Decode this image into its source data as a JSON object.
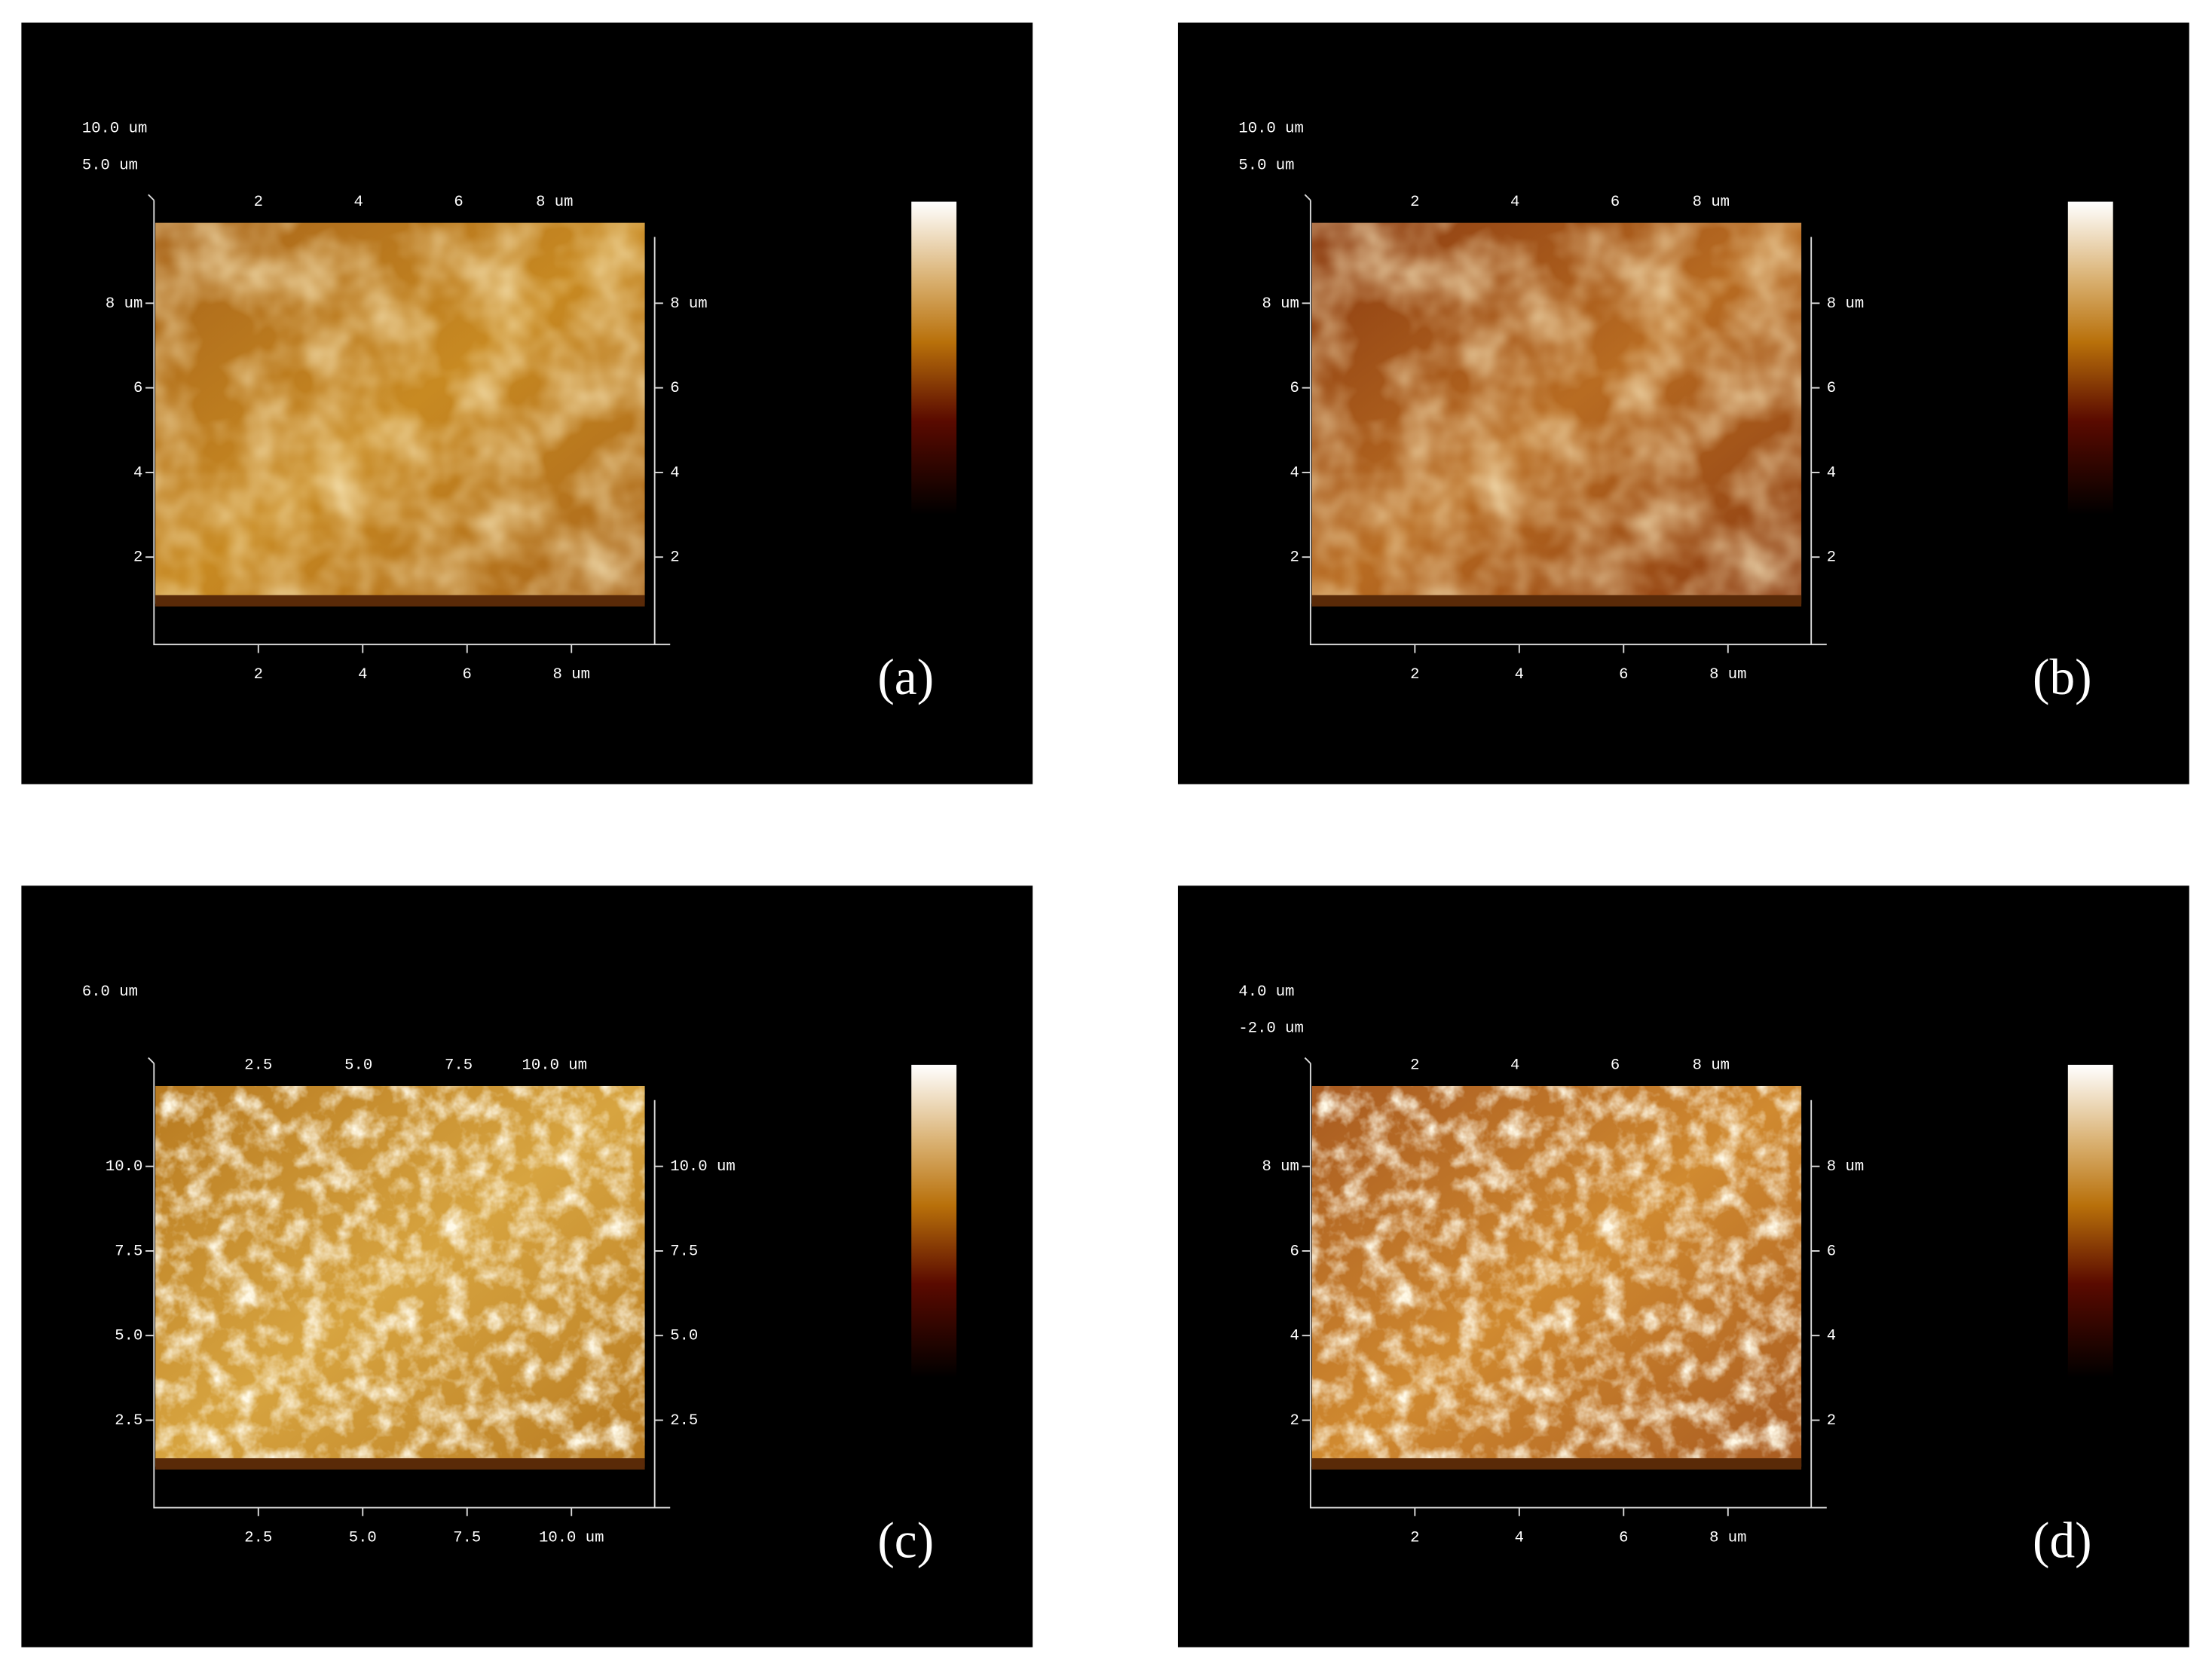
{
  "panels": [
    {
      "label": "(a)",
      "z_labels": [
        "10.0 um",
        "5.0 um"
      ],
      "top_ticks": [
        "2",
        "4",
        "6",
        "8 um"
      ],
      "left_ticks": [
        "8 um",
        "6",
        "4",
        "2"
      ],
      "right_ticks": [
        "8 um",
        "6",
        "4",
        "2"
      ],
      "bottom_ticks": [
        "2",
        "4",
        "6",
        "8 um"
      ]
    },
    {
      "label": "(b)",
      "z_labels": [
        "10.0 um",
        "5.0 um"
      ],
      "top_ticks": [
        "2",
        "4",
        "6",
        "8 um"
      ],
      "left_ticks": [
        "8 um",
        "6",
        "4",
        "2"
      ],
      "right_ticks": [
        "8 um",
        "6",
        "4",
        "2"
      ],
      "bottom_ticks": [
        "2",
        "4",
        "6",
        "8 um"
      ]
    },
    {
      "label": "(c)",
      "z_labels": [
        "6.0 um"
      ],
      "top_ticks": [
        "2.5",
        "5.0",
        "7.5",
        "10.0 um"
      ],
      "left_ticks": [
        "10.0",
        "7.5",
        "5.0",
        "2.5"
      ],
      "right_ticks": [
        "10.0 um",
        "7.5",
        "5.0",
        "2.5"
      ],
      "bottom_ticks": [
        "2.5",
        "5.0",
        "7.5",
        "10.0 um"
      ]
    },
    {
      "label": "(d)",
      "z_labels": [
        "4.0 um",
        "-2.0 um"
      ],
      "top_ticks": [
        "2",
        "4",
        "6",
        "8 um"
      ],
      "left_ticks": [
        "8 um",
        "6",
        "4",
        "2"
      ],
      "right_ticks": [
        "8 um",
        "6",
        "4",
        "2"
      ],
      "bottom_ticks": [
        "2",
        "4",
        "6",
        "8 um"
      ]
    }
  ]
}
